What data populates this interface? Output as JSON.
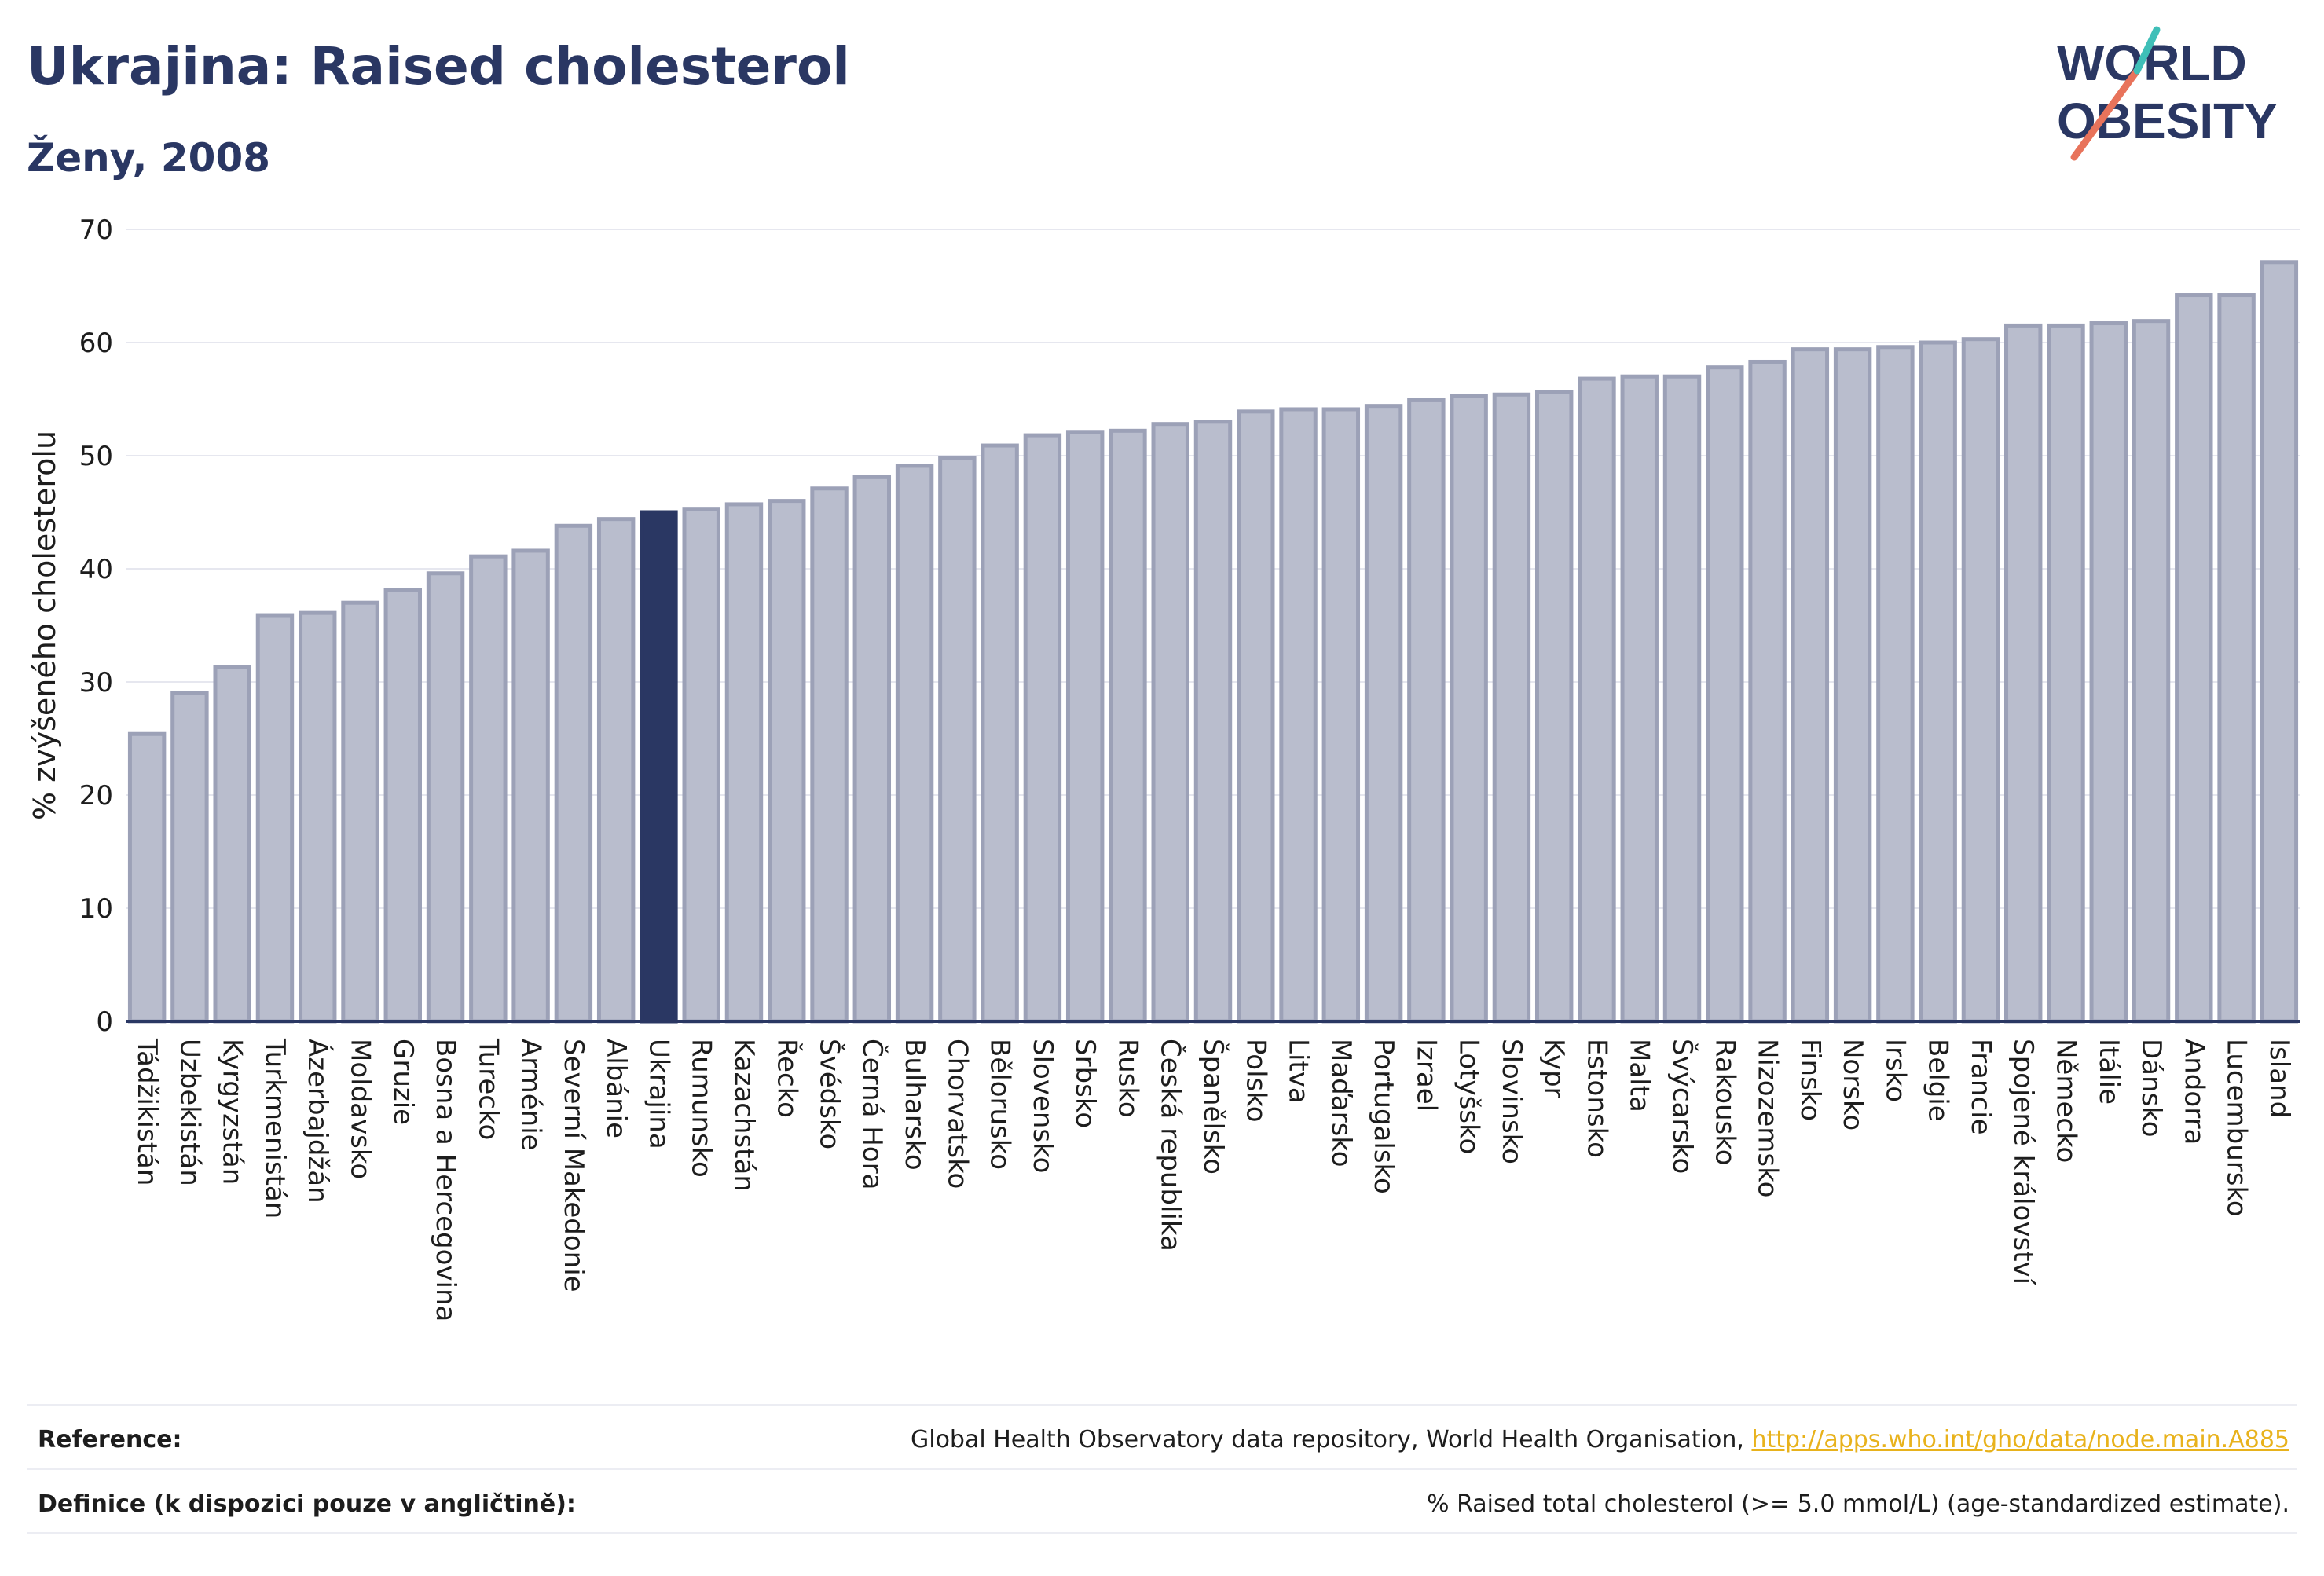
{
  "title": "Ukrajina: Raised cholesterol",
  "subtitle": "Ženy, 2008",
  "logo": {
    "line1": "WORLD",
    "line2": "OBESITY",
    "accent": "#e8735b",
    "accent2": "#3fbfb8"
  },
  "colors": {
    "bar": "#b9bdcd",
    "bar_stroke": "#9ca1b7",
    "highlight": "#2a3763",
    "axis": "#2a3763",
    "grid": "#e6e7ef"
  },
  "chart_data": {
    "type": "bar",
    "ylabel": "% zvýšeného cholesterolu",
    "ylim": [
      0,
      70
    ],
    "yticks": [
      0,
      10,
      20,
      30,
      40,
      50,
      60,
      70
    ],
    "highlight": "Ukrajina",
    "categories": [
      "Tádžikistán",
      "Uzbekistán",
      "Kyrgyzstán",
      "Turkmenistán",
      "Ázerbajdžán",
      "Moldavsko",
      "Gruzie",
      "Bosna a Hercegovina",
      "Turecko",
      "Arménie",
      "Severní Makedonie",
      "Albánie",
      "Ukrajina",
      "Rumunsko",
      "Kazachstán",
      "Řecko",
      "Švédsko",
      "Černá Hora",
      "Bulharsko",
      "Chorvatsko",
      "Bělorusko",
      "Slovensko",
      "Srbsko",
      "Rusko",
      "Česká republika",
      "Španělsko",
      "Polsko",
      "Litva",
      "Maďarsko",
      "Portugalsko",
      "Izrael",
      "Lotyšsko",
      "Slovinsko",
      "Kypr",
      "Estonsko",
      "Malta",
      "Švýcarsko",
      "Rakousko",
      "Nizozemsko",
      "Finsko",
      "Norsko",
      "Irsko",
      "Belgie",
      "Francie",
      "Spojené království",
      "Německo",
      "Itálie",
      "Dánsko",
      "Andorra",
      "Lucembursko",
      "Island"
    ],
    "values": [
      25.4,
      29.0,
      31.3,
      35.9,
      36.1,
      37.0,
      38.1,
      39.6,
      41.1,
      41.6,
      43.8,
      44.4,
      45.0,
      45.3,
      45.7,
      46.0,
      47.1,
      48.1,
      49.1,
      49.8,
      50.9,
      51.8,
      52.1,
      52.2,
      52.8,
      53.0,
      53.9,
      54.1,
      54.1,
      54.4,
      54.9,
      55.3,
      55.4,
      55.6,
      56.8,
      57.0,
      57.0,
      57.8,
      58.3,
      59.4,
      59.4,
      59.6,
      60.0,
      60.3,
      61.5,
      61.5,
      61.7,
      61.9,
      64.2,
      64.2,
      67.1
    ]
  },
  "footer": {
    "reference_label": "Reference:",
    "reference_text": "Global Health Observatory data repository, World Health Organisation,",
    "reference_link": "http://apps.who.int/gho/data/node.main.A885",
    "definition_label": "Definice (k dispozici pouze v angličtině):",
    "definition_text": "% Raised total cholesterol (>= 5.0 mmol/L) (age-standardized estimate)."
  }
}
